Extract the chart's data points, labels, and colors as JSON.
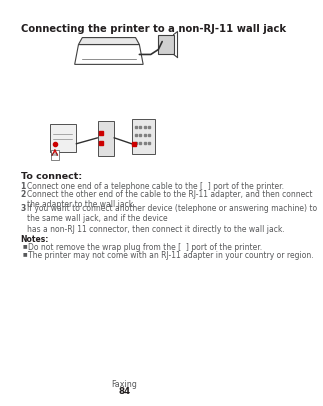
{
  "background_color": "#ffffff",
  "title": "Connecting the printer to a non-RJ-11 wall jack",
  "title_fontsize": 7.2,
  "title_bold": true,
  "section_to_connect": "To connect:",
  "section_to_connect_fontsize": 6.8,
  "steps": [
    "Connect one end of a telephone cable to the ☐ port of the printer.",
    "Connect the other end of the cable to the RJ-11 adapter, and then connect the adapter to the wall jack.",
    "If you want to connect another device (telephone or answering machine) to the same wall jack, and if the device\nhas a non-RJ 11 connector, then connect it directly to the wall jack."
  ],
  "notes_header": "Notes:",
  "notes": [
    "Do not remove the wrap plug from the ☐ port of the printer.",
    "The printer may not come with an RJ-11 adapter in your country or region."
  ],
  "footer_line1": "Faxing",
  "footer_line2": "84",
  "text_color": "#231f20",
  "text_color_light": "#58595b",
  "step_fontsize": 5.5,
  "notes_fontsize": 5.5,
  "footer_fontsize": 5.8
}
